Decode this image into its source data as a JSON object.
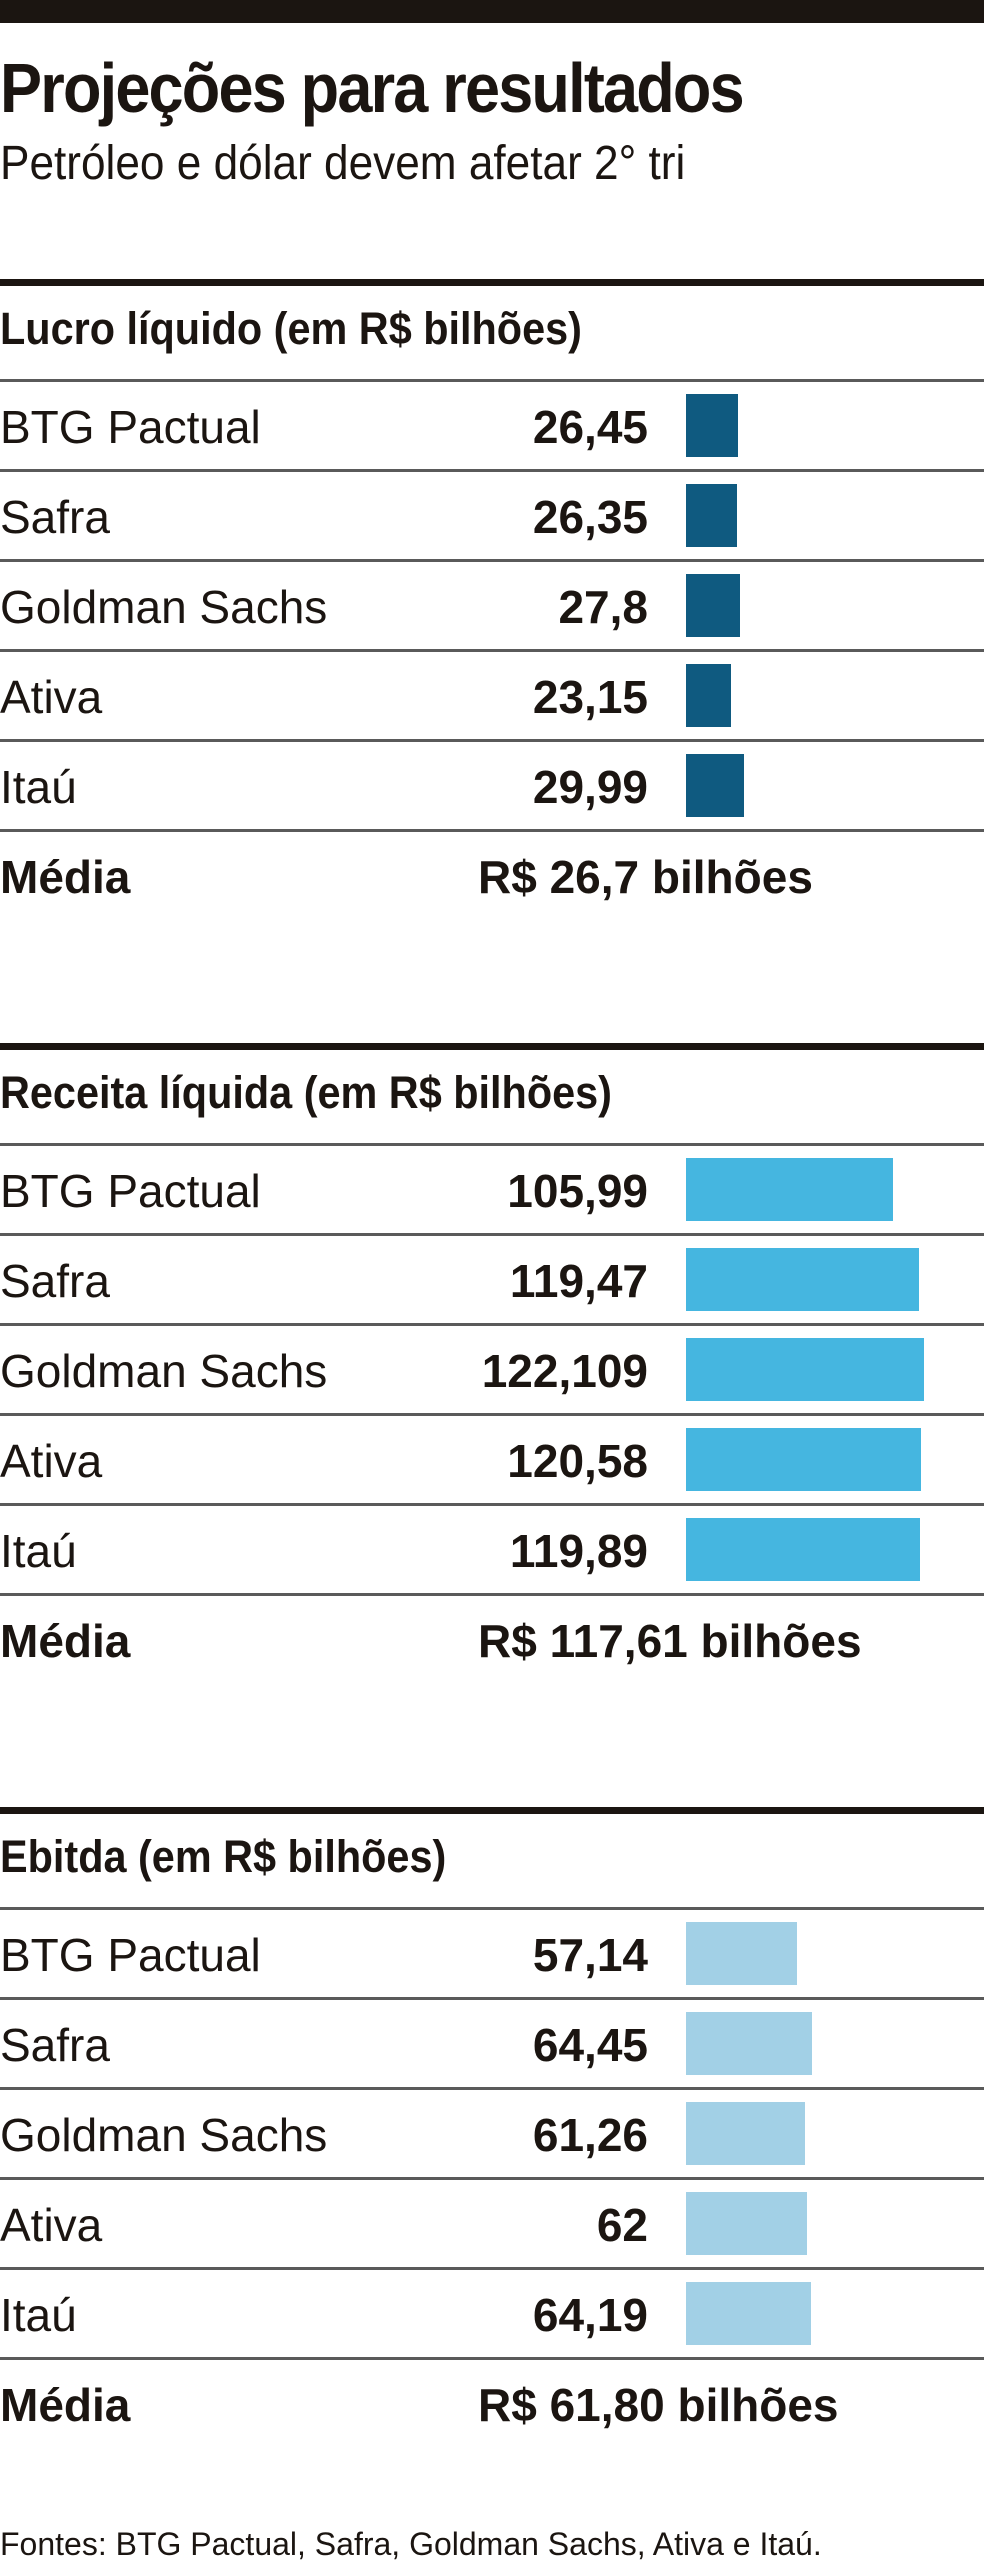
{
  "header": {
    "title": "Projeções para resultados",
    "subtitle": "Petróleo e dólar devem afetar 2° tri"
  },
  "chart_data": [
    {
      "type": "bar",
      "title": "Lucro líquido (em R$ bilhões)",
      "categories": [
        "BTG Pactual",
        "Safra",
        "Goldman Sachs",
        "Ativa",
        "Itaú"
      ],
      "values": [
        26.45,
        26.35,
        27.8,
        23.15,
        29.99
      ],
      "labels": [
        "26,45",
        "26,35",
        "27,8",
        "23,15",
        "29,99"
      ],
      "color": "#0f5a80",
      "mean_label": "Média",
      "mean_value": "R$ 26,7 bilhões"
    },
    {
      "type": "bar",
      "title": "Receita líquida (em R$ bilhões)",
      "categories": [
        "BTG Pactual",
        "Safra",
        "Goldman Sachs",
        "Ativa",
        "Itaú"
      ],
      "values": [
        105.99,
        119.47,
        122.109,
        120.58,
        119.89
      ],
      "labels": [
        "105,99",
        "119,47",
        "122,109",
        "120,58",
        "119,89"
      ],
      "color": "#45b6e0",
      "mean_label": "Média",
      "mean_value": "R$ 117,61 bilhões"
    },
    {
      "type": "bar",
      "title": "Ebitda (em R$ bilhões)",
      "categories": [
        "BTG Pactual",
        "Safra",
        "Goldman Sachs",
        "Ativa",
        "Itaú"
      ],
      "values": [
        57.14,
        64.45,
        61.26,
        62,
        64.19
      ],
      "labels": [
        "57,14",
        "64,45",
        "61,26",
        "62",
        "64,19"
      ],
      "color": "#a2d0e6",
      "mean_label": "Média",
      "mean_value": "R$ 61,80 bilhões"
    }
  ],
  "footer": "Fontes: BTG Pactual, Safra, Goldman Sachs, Ativa e Itaú."
}
